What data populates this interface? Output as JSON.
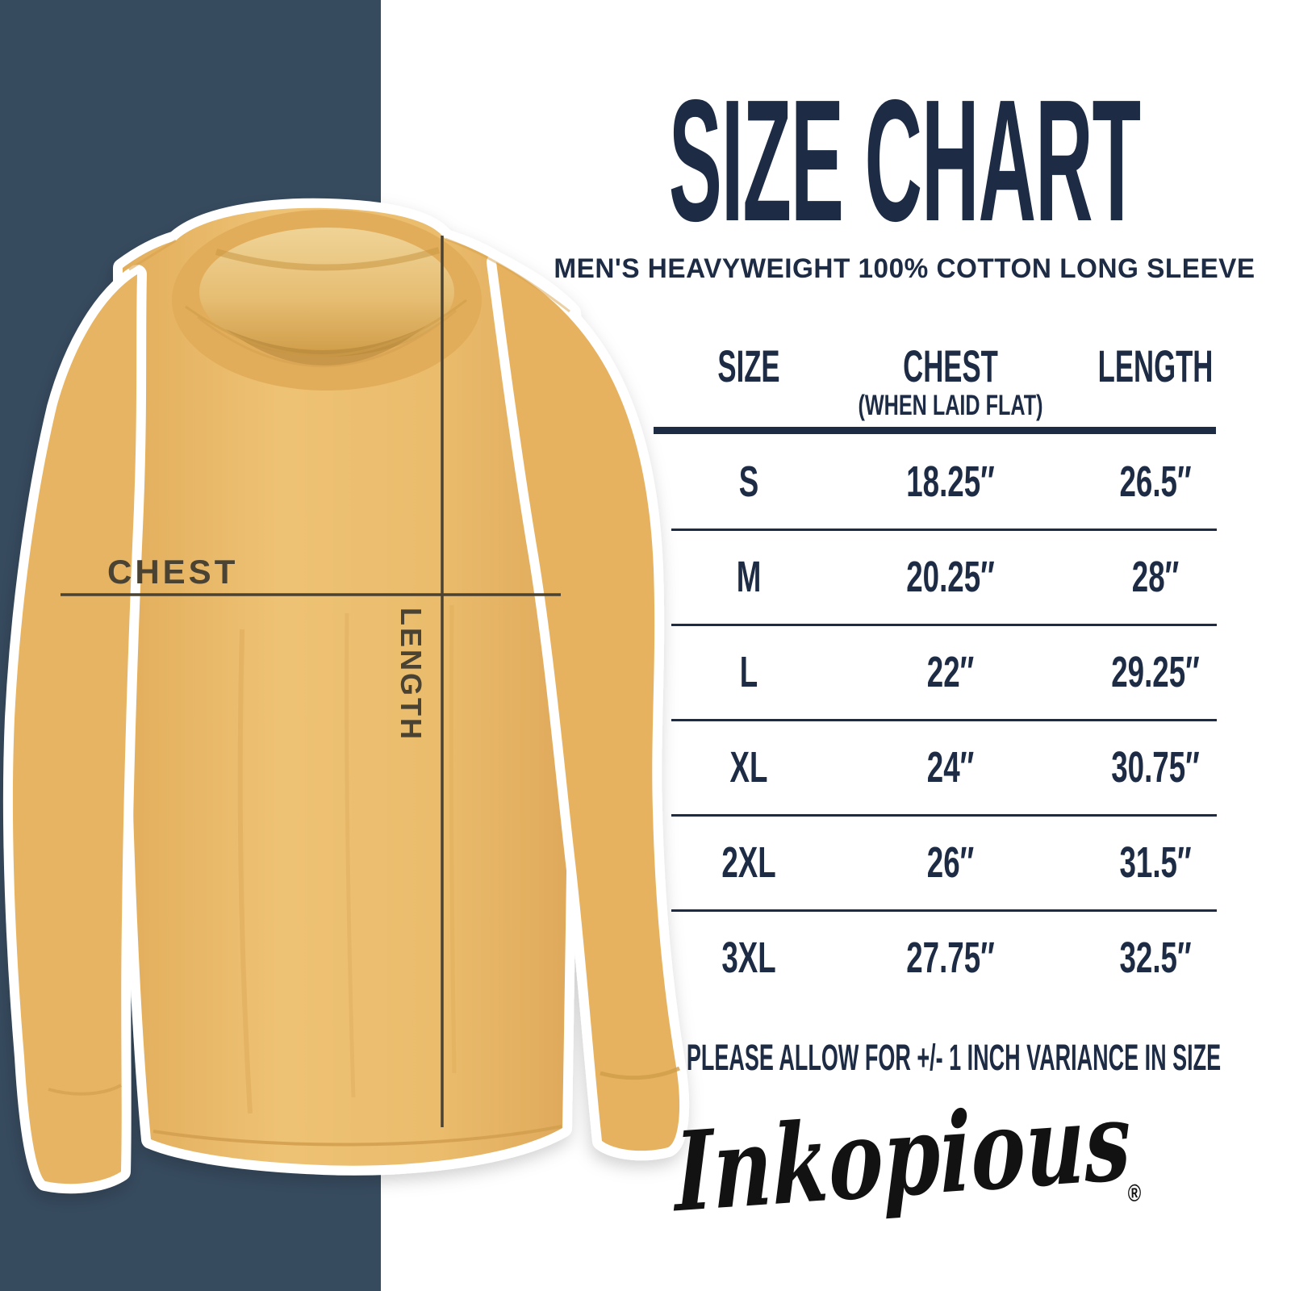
{
  "header": {
    "title": "SIZE CHART",
    "subtitle": "MEN'S HEAVYWEIGHT 100% COTTON LONG SLEEVE"
  },
  "chart_data": {
    "type": "table",
    "title": "SIZE CHART",
    "subtitle": "MEN'S HEAVYWEIGHT 100% COTTON LONG SLEEVE",
    "columns": [
      "SIZE",
      "CHEST",
      "LENGTH"
    ],
    "chest_subnote": "(WHEN LAID FLAT)",
    "rows": [
      {
        "size": "S",
        "chest": "18.25″",
        "length": "26.5″"
      },
      {
        "size": "M",
        "chest": "20.25″",
        "length": "28″"
      },
      {
        "size": "L",
        "chest": "22″",
        "length": "29.25″"
      },
      {
        "size": "XL",
        "chest": "24″",
        "length": "30.75″"
      },
      {
        "size": "2XL",
        "chest": "26″",
        "length": "31.5″"
      },
      {
        "size": "3XL",
        "chest": "27.75″",
        "length": "32.5″"
      }
    ],
    "note": "PLEASE ALLOW FOR +/- 1 INCH VARIANCE IN SIZE"
  },
  "note": "PLEASE ALLOW FOR +/- 1 INCH VARIANCE IN SIZE",
  "diagram": {
    "chest_label": "CHEST",
    "length_label": "LENGTH"
  },
  "brand": {
    "logo_text": "Inkopious",
    "registered_mark": "®"
  },
  "colors": {
    "stripe_navy": "#374b5f",
    "text_navy": "#1d2c44",
    "shirt_mustard": "#eabc6c",
    "measure_line": "#4a4232",
    "logo_black": "#121212"
  }
}
